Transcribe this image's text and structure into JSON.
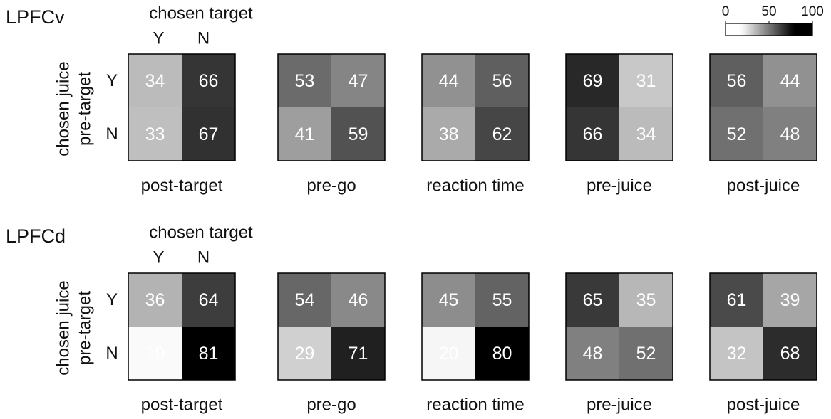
{
  "chart_data": [
    {
      "type": "heatmap",
      "title": "LPFCv",
      "x_label": "chosen target",
      "y_label": [
        "chosen juice",
        "pre-target"
      ],
      "x_categories": [
        "Y",
        "N"
      ],
      "y_categories": [
        "Y",
        "N"
      ],
      "panels": [
        {
          "title": "post-target",
          "values": [
            [
              34,
              66
            ],
            [
              33,
              67
            ]
          ]
        },
        {
          "title": "pre-go",
          "values": [
            [
              53,
              47
            ],
            [
              41,
              59
            ]
          ]
        },
        {
          "title": "reaction time",
          "values": [
            [
              44,
              56
            ],
            [
              38,
              62
            ]
          ]
        },
        {
          "title": "pre-juice",
          "values": [
            [
              69,
              31
            ],
            [
              66,
              34
            ]
          ]
        },
        {
          "title": "post-juice",
          "values": [
            [
              56,
              44
            ],
            [
              52,
              48
            ]
          ]
        }
      ],
      "colorbar": {
        "lim": [
          0,
          100
        ],
        "ticks": [
          0,
          50,
          100
        ]
      }
    },
    {
      "type": "heatmap",
      "title": "LPFCd",
      "x_label": "chosen target",
      "y_label": [
        "chosen juice",
        "pre-target"
      ],
      "x_categories": [
        "Y",
        "N"
      ],
      "y_categories": [
        "Y",
        "N"
      ],
      "panels": [
        {
          "title": "post-target",
          "values": [
            [
              36,
              64
            ],
            [
              19,
              81
            ]
          ]
        },
        {
          "title": "pre-go",
          "values": [
            [
              54,
              46
            ],
            [
              29,
              71
            ]
          ]
        },
        {
          "title": "reaction time",
          "values": [
            [
              45,
              55
            ],
            [
              20,
              80
            ]
          ]
        },
        {
          "title": "pre-juice",
          "values": [
            [
              65,
              35
            ],
            [
              48,
              52
            ]
          ]
        },
        {
          "title": "post-juice",
          "values": [
            [
              61,
              39
            ],
            [
              32,
              68
            ]
          ]
        }
      ]
    }
  ]
}
